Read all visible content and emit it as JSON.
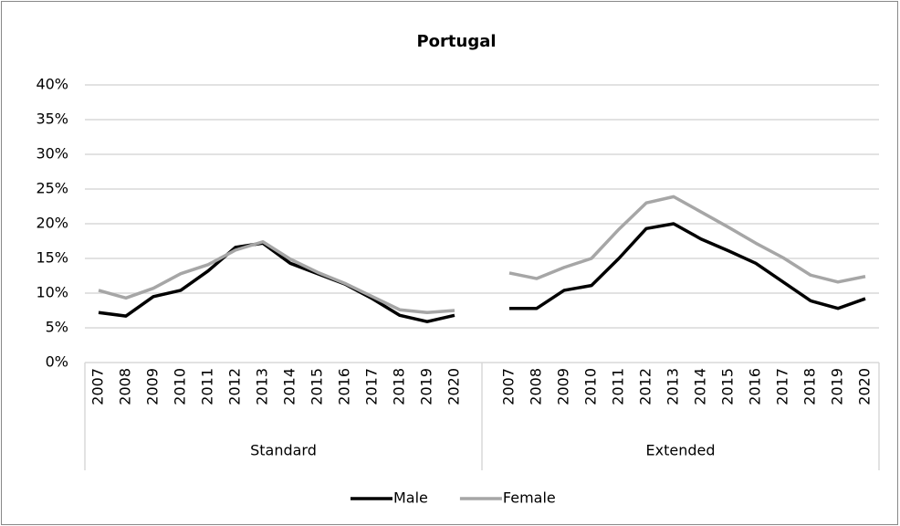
{
  "chart_data": {
    "type": "line",
    "title": "Portugal",
    "categories": [
      "2007",
      "2008",
      "2009",
      "2010",
      "2011",
      "2012",
      "2013",
      "2014",
      "2015",
      "2016",
      "2017",
      "2018",
      "2019",
      "2020",
      "2007",
      "2008",
      "2009",
      "2010",
      "2011",
      "2012",
      "2013",
      "2014",
      "2015",
      "2016",
      "2017",
      "2018",
      "2019",
      "2020"
    ],
    "category_groups": [
      "Standard",
      "Extended"
    ],
    "series": [
      {
        "name": "Male",
        "color": "#000000",
        "values": [
          7.2,
          6.7,
          9.5,
          10.4,
          13.2,
          16.6,
          17.2,
          14.3,
          12.8,
          11.3,
          9.2,
          6.8,
          5.9,
          6.8,
          7.8,
          7.8,
          10.4,
          11.1,
          15.0,
          19.3,
          20.0,
          17.8,
          16.1,
          14.3,
          11.6,
          8.9,
          7.8,
          9.2
        ]
      },
      {
        "name": "Female",
        "color": "#a6a6a6",
        "values": [
          10.4,
          9.3,
          10.7,
          12.8,
          14.1,
          16.2,
          17.4,
          14.9,
          13.0,
          11.4,
          9.5,
          7.6,
          7.2,
          7.5,
          12.9,
          12.1,
          13.7,
          15.0,
          19.2,
          23.0,
          23.9,
          21.7,
          19.5,
          17.2,
          15.1,
          12.6,
          11.6,
          12.4
        ]
      }
    ],
    "ylim": [
      0,
      40
    ],
    "yticks": [
      {
        "value": 0,
        "label": "0%"
      },
      {
        "value": 5,
        "label": "5%"
      },
      {
        "value": 10,
        "label": "10%"
      },
      {
        "value": 15,
        "label": "15%"
      },
      {
        "value": 20,
        "label": "20%"
      },
      {
        "value": 25,
        "label": "25%"
      },
      {
        "value": 30,
        "label": "30%"
      },
      {
        "value": 35,
        "label": "35%"
      },
      {
        "value": 40,
        "label": "40%"
      }
    ],
    "grid": true,
    "legend": "bottom"
  }
}
